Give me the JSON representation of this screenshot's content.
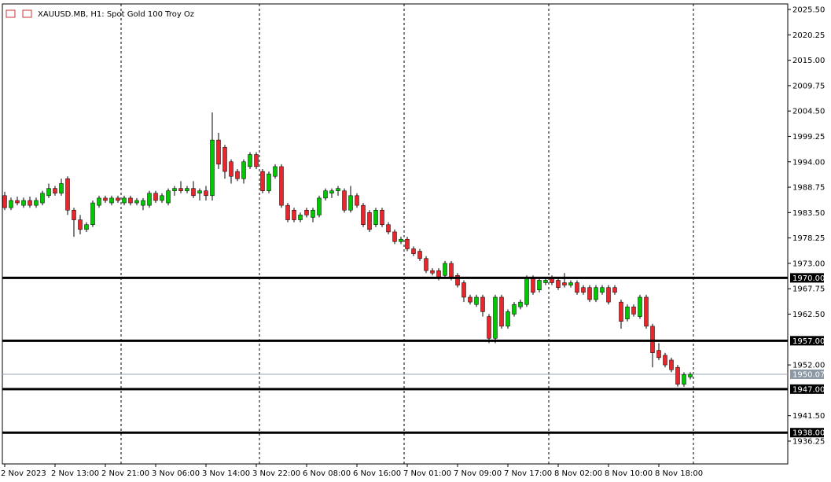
{
  "chart_data": {
    "type": "candlestick",
    "title": "XAUUSD.MB, H1:  Spot Gold 100 Troy Oz",
    "categories": [
      "2 Nov 2023",
      null,
      null,
      null,
      null,
      null,
      null,
      null,
      "2 Nov 13:00",
      null,
      null,
      null,
      null,
      null,
      null,
      null,
      "2 Nov 21:00",
      null,
      null,
      null,
      null,
      null,
      null,
      null,
      "3 Nov 06:00",
      null,
      null,
      null,
      null,
      null,
      null,
      null,
      "3 Nov 14:00",
      null,
      null,
      null,
      null,
      null,
      null,
      null,
      "3 Nov 22:00",
      null,
      null,
      null,
      null,
      null,
      null,
      null,
      "6 Nov 08:00",
      null,
      null,
      null,
      null,
      null,
      null,
      null,
      "6 Nov 16:00",
      null,
      null,
      null,
      null,
      null,
      null,
      null,
      "7 Nov 01:00",
      null,
      null,
      null,
      null,
      null,
      null,
      null,
      "7 Nov 09:00",
      null,
      null,
      null,
      null,
      null,
      null,
      null,
      "7 Nov 17:00",
      null,
      null,
      null,
      null,
      null,
      null,
      null,
      "8 Nov 02:00",
      null,
      null,
      null,
      null,
      null,
      null,
      null,
      "8 Nov 10:00",
      null,
      null,
      null,
      null,
      null,
      null,
      null,
      "8 Nov 18:00",
      null,
      null,
      null,
      null,
      null
    ],
    "open": [
      1987,
      1984.5,
      1986,
      1985,
      1986,
      1985,
      1985.5,
      1987,
      1988.5,
      1987.5,
      1990.5,
      1984,
      1982,
      1980,
      1981,
      1985,
      1986.5,
      1985.5,
      1986.5,
      1985.5,
      1986.5,
      1985.5,
      1985,
      1985,
      1987.5,
      1986,
      1985.5,
      1988,
      1988.5,
      1988,
      1988.5,
      1987.5,
      1988,
      1987,
      1998.5,
      1997,
      1994,
      1992,
      1990.5,
      1993,
      1995.5,
      1992,
      1988,
      1991,
      1993,
      1985,
      1984,
      1982,
      1984,
      1982.5,
      1983,
      1986.5,
      1987.5,
      1988,
      1988,
      1984,
      1987,
      1985,
      1983.5,
      1981,
      1984,
      1981,
      1979.5,
      1977.5,
      1978,
      1976,
      1975.5,
      1974,
      1971.5,
      1971.5,
      1970.5,
      1973,
      1970.5,
      1969,
      1966,
      1964.5,
      1966,
      1962,
      1957.5,
      1966,
      1960,
      1962.5,
      1964,
      1964.5,
      1970,
      1967.5,
      1969,
      1970,
      1969.5,
      1969,
      1968.5,
      1969,
      1968,
      1968,
      1965.5,
      1967,
      1968,
      1968,
      1965,
      1961.5,
      1964,
      1962,
      1966,
      1960,
      1955,
      1954,
      1953,
      1951.5,
      1948,
      1949.5
    ],
    "high": [
      1987.8,
      1986.6,
      1986.8,
      1986.6,
      1986.8,
      1986.6,
      1988,
      1989.5,
      1989,
      1990.5,
      1991,
      1984.5,
      1983,
      1981.5,
      1986,
      1987,
      1987,
      1987,
      1987,
      1987,
      1987,
      1986.5,
      1986.5,
      1988,
      1988,
      1987.5,
      1988.5,
      1989,
      1990,
      1989,
      1990,
      1988.5,
      1989,
      2004.2,
      2000,
      1997.5,
      1994.5,
      1992.5,
      1994.5,
      1996,
      1996,
      1992.5,
      1992,
      1993.5,
      1993.5,
      1985.5,
      1984.5,
      1983.5,
      1984.5,
      1984.5,
      1987,
      1988.5,
      1988.5,
      1989,
      1988.5,
      1989,
      1987.5,
      1985.5,
      1984,
      1984.5,
      1984.5,
      1981.5,
      1980,
      1978.5,
      1978.5,
      1976.5,
      1976,
      1974.5,
      1972,
      1972,
      1973.5,
      1973.5,
      1971,
      1969.5,
      1966.5,
      1966.5,
      1966.5,
      1962.5,
      1966.5,
      1966.5,
      1963.5,
      1965,
      1965.5,
      1970.5,
      1970.5,
      1970,
      1970,
      1970.5,
      1970,
      1971,
      1969.5,
      1969.5,
      1968.5,
      1968.5,
      1968.5,
      1968.5,
      1968.5,
      1968.5,
      1965.5,
      1964.5,
      1964.5,
      1966.5,
      1966.5,
      1960.5,
      1956.5,
      1954.5,
      1953.5,
      1952,
      1950.5,
      1950.5
    ],
    "low": [
      1984,
      1984,
      1985,
      1984.5,
      1984.5,
      1984.5,
      1985,
      1986.5,
      1987,
      1987,
      1983,
      1978.5,
      1979,
      1979.5,
      1980.5,
      1984.5,
      1985.5,
      1985,
      1985.5,
      1985,
      1985,
      1985,
      1984,
      1984.5,
      1985.5,
      1985.5,
      1985,
      1987,
      1987.5,
      1987.5,
      1986.5,
      1986,
      1986,
      1986,
      1992.5,
      1990.5,
      1989.5,
      1990,
      1989.5,
      1992.5,
      1992.5,
      1987.5,
      1987.5,
      1990.5,
      1984.5,
      1981.5,
      1981.5,
      1981.5,
      1982.5,
      1981.5,
      1982.5,
      1986,
      1986.5,
      1987,
      1983.5,
      1983.5,
      1984.5,
      1980.5,
      1979.5,
      1980.5,
      1980.5,
      1979,
      1977,
      1977,
      1975.5,
      1974.5,
      1973.5,
      1971,
      1970.5,
      1969.5,
      1970,
      1969.5,
      1968,
      1965,
      1964.5,
      1964,
      1962,
      1956.5,
      1956.5,
      1959.5,
      1959.5,
      1962,
      1963.5,
      1964,
      1966.5,
      1967,
      1968.5,
      1968.5,
      1967.5,
      1968,
      1968,
      1966.5,
      1966.5,
      1965,
      1965,
      1966.5,
      1964.5,
      1966.5,
      1959.5,
      1961,
      1962,
      1961.5,
      1959.5,
      1951.5,
      1953,
      1951.5,
      1950.5,
      1947.5,
      1947.5,
      1949
    ],
    "close": [
      1984.5,
      1986,
      1985.5,
      1986,
      1985,
      1986,
      1987.5,
      1988.5,
      1987.5,
      1989.5,
      1984,
      1982,
      1980,
      1981,
      1985.5,
      1986.5,
      1986,
      1986.5,
      1986,
      1986.5,
      1985.5,
      1986,
      1986,
      1987.5,
      1986,
      1987,
      1988,
      1988.5,
      1988,
      1988.5,
      1987,
      1988,
      1987,
      1998.5,
      1993.5,
      1992,
      1991,
      1990.5,
      1994,
      1995.5,
      1993,
      1988,
      1991.5,
      1993,
      1985,
      1982,
      1982,
      1983,
      1983,
      1984,
      1986.5,
      1988,
      1988,
      1988.5,
      1984,
      1987,
      1985,
      1981,
      1980,
      1984,
      1981,
      1979.5,
      1977.5,
      1978,
      1976,
      1975,
      1974,
      1971.5,
      1971,
      1970,
      1973,
      1970,
      1968.5,
      1966,
      1965,
      1966,
      1963,
      1957.5,
      1966,
      1960,
      1963,
      1964.5,
      1965,
      1970,
      1967,
      1969.5,
      1969.5,
      1969,
      1968,
      1968.5,
      1969,
      1967,
      1967,
      1965.5,
      1968,
      1968,
      1965,
      1967,
      1961,
      1964,
      1962.5,
      1966,
      1960,
      1954.5,
      1953.5,
      1952,
      1951,
      1948,
      1950,
      1950.07
    ],
    "up_color": "#00c800",
    "down_color": "#e8262b",
    "ylim": [
      1931.53,
      2026.64
    ],
    "yticks": [
      {
        "value": 2025.5,
        "label": "2025.50"
      },
      {
        "value": 2020.25,
        "label": "2020.25"
      },
      {
        "value": 2015,
        "label": "2015.00"
      },
      {
        "value": 2009.75,
        "label": "2009.75"
      },
      {
        "value": 2004.5,
        "label": "2004.50"
      },
      {
        "value": 1999.25,
        "label": "1999.25"
      },
      {
        "value": 1994,
        "label": "1994.00"
      },
      {
        "value": 1988.75,
        "label": "1988.75"
      },
      {
        "value": 1983.5,
        "label": "1983.50"
      },
      {
        "value": 1978.25,
        "label": "1978.25"
      },
      {
        "value": 1973,
        "label": "1973.00"
      },
      {
        "value": 1967.75,
        "label": "1967.75"
      },
      {
        "value": 1962.5,
        "label": "1962.50"
      },
      {
        "value": 1952,
        "label": "1952.00"
      },
      {
        "value": 1941.5,
        "label": "1941.50"
      },
      {
        "value": 1936.25,
        "label": "1936.25"
      }
    ],
    "levels": [
      {
        "value": 1970,
        "label": "1970.00"
      },
      {
        "value": 1957,
        "label": "1957.00"
      },
      {
        "value": 1947,
        "label": "1947.00"
      },
      {
        "value": 1938,
        "label": "1938.00"
      }
    ],
    "current_price": {
      "value": 1950.07,
      "label": "1950.07"
    },
    "grid": false
  }
}
